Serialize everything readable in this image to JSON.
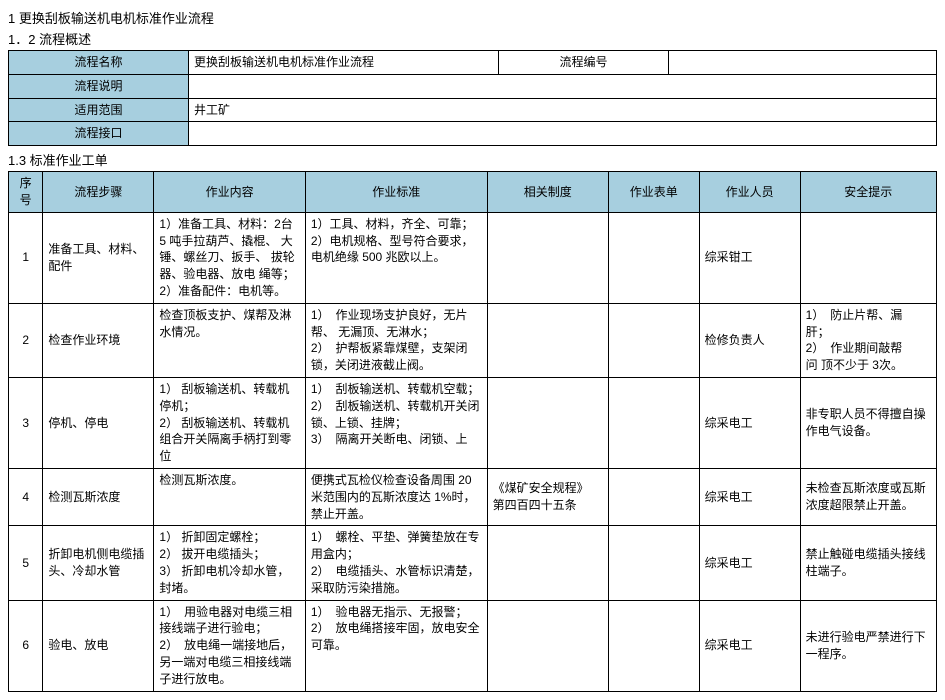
{
  "titles": {
    "t1": "1 更换刮板输送机电机标准作业流程",
    "t2": "1．2 流程概述",
    "t3": "1.3 标准作业工单"
  },
  "overview": {
    "rows": [
      {
        "label": "流程名称",
        "val1": "更换刮板输送机电机标准作业流程",
        "label2": "流程编号",
        "val2": ""
      },
      {
        "label": "流程说明",
        "val1": "",
        "label2": "",
        "val2": ""
      },
      {
        "label": "适用范围",
        "val1": "井工矿",
        "label2": "",
        "val2": ""
      },
      {
        "label": "流程接口",
        "val1": "",
        "label2": "",
        "val2": ""
      }
    ]
  },
  "headers": {
    "seq": "序号",
    "step": "流程步骤",
    "content": "作业内容",
    "standard": "作业标准",
    "system": "相关制度",
    "sheet": "作业表单",
    "person": "作业人员",
    "safety": "安全提示"
  },
  "rows": [
    {
      "seq": "1",
      "step": "准备工具、材料、配件",
      "content": "1）准备工具、材料：2台 5 吨手拉葫芦、撬棍、 大锤、螺丝刀、扳手、 拔轮器、验电器、放电 绳等；\n2）准备配件：电机等。",
      "standard": "1）工具、材料，齐全、可靠；\n2）电机规格、型号符合要求，\n电机绝缘 500 兆欧以上。",
      "system": "",
      "sheet": "",
      "person": "综采钳工",
      "safety": ""
    },
    {
      "seq": "2",
      "step": "检查作业环境",
      "content": "检查顶板支护、煤帮及淋水情况。",
      "standard": "1）　作业现场支护良好，无片帮、 无漏顶、无淋水；\n2）　护帮板紧靠煤壁，支架闭锁，关闭进液截止阀。",
      "system": "",
      "sheet": "",
      "person": "检修负责人",
      "safety": "1）　防止片帮、漏\n肝；\n2）　作业期间敲帮\n问 顶不少于 3次。"
    },
    {
      "seq": "3",
      "step": "停机、停电",
      "content": "1） 刮板输送机、转载机 停机；\n2） 刮板输送机、转载机 组合开关隔离手柄打到零位",
      "standard": "1）　刮板输送机、转载机空载；\n2）　刮板输送机、转载机开关闭 锁、上锁、挂牌；\n3）　隔离开关断电、闭锁、上",
      "system": "",
      "sheet": "",
      "person": "综采电工",
      "safety": "非专职人员不得擅自操作电气设备。"
    },
    {
      "seq": "4",
      "step": "检测瓦斯浓度",
      "content": "检测瓦斯浓度。",
      "standard": "便携式瓦检仪检查设备周围 20 米范围内的瓦斯浓度达 1%时， 禁止开盖。",
      "system": "《煤矿安全规程》 第四百四十五条",
      "sheet": "",
      "person": "综采电工",
      "safety": "未检查瓦斯浓度或瓦斯浓度超限禁止开盖。"
    },
    {
      "seq": "5",
      "step": "折卸电机侧电缆插头、冷却水管",
      "content": "1） 折卸固定螺栓；\n2） 拔开电缆插头；\n3） 折卸电机冷却水管，封堵。",
      "standard": "1）　螺栓、平垫、弹簧垫放在专 用盒内；\n2）　电缆插头、水管标识清楚，采取防污染措施。",
      "system": "",
      "sheet": "",
      "person": "综采电工",
      "safety": "禁止触碰电缆插头接线柱端子。"
    },
    {
      "seq": "6",
      "step": "验电、放电",
      "content": "1）　用验电器对电缆三相 接线端子进行验电；\n2）　放电绳一端接地后， 另一端对电缆三相接线端子进行放电。",
      "standard": "1）　验电器无指示、无报警；\n2）　放电绳搭接牢固，放电安全 可靠。",
      "system": "",
      "sheet": "",
      "person": "综采电工",
      "safety": "未进行验电严禁进行下一程序。"
    }
  ]
}
